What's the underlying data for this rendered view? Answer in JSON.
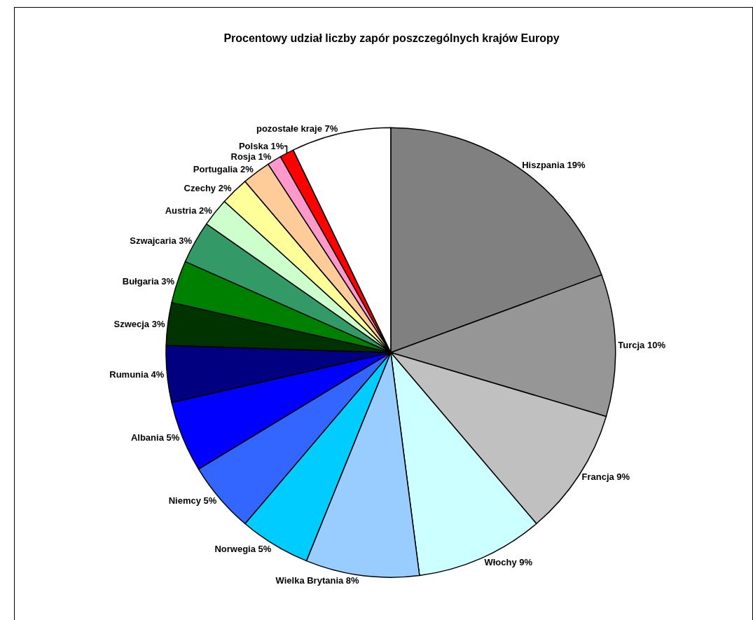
{
  "chart_data": {
    "type": "pie",
    "title": "Procentowy udział liczby zapór poszczególnych krajów Europy",
    "categories": [
      "Hiszpania",
      "Turcja",
      "Francja",
      "Włochy",
      "Wielka Brytania",
      "Norwegia",
      "Niemcy",
      "Albania",
      "Rumunia",
      "Szwecja",
      "Bułgaria",
      "Szwajcaria",
      "Austria",
      "Czechy",
      "Portugalia",
      "Rosja",
      "Polska",
      "pozostałe kraje"
    ],
    "values": [
      19,
      10,
      9,
      9,
      8,
      5,
      5,
      5,
      4,
      3,
      3,
      3,
      2,
      2,
      2,
      1,
      1,
      7
    ],
    "value_labels": [
      "19%",
      "10%",
      "9%",
      "9%",
      "8%",
      "5%",
      "5%",
      "5%",
      "4%",
      "3%",
      "3%",
      "3%",
      "2%",
      "2%",
      "2%",
      "1%",
      "1%",
      "7%"
    ],
    "colors": [
      "#808080",
      "#969696",
      "#c0c0c0",
      "#ccffff",
      "#99ccff",
      "#00ccff",
      "#3366ff",
      "#0000ff",
      "#000080",
      "#003300",
      "#008000",
      "#339966",
      "#ccffcc",
      "#ffff99",
      "#ffcc99",
      "#ff99cc",
      "#ff0000",
      "#ffffff"
    ],
    "legend": false
  }
}
